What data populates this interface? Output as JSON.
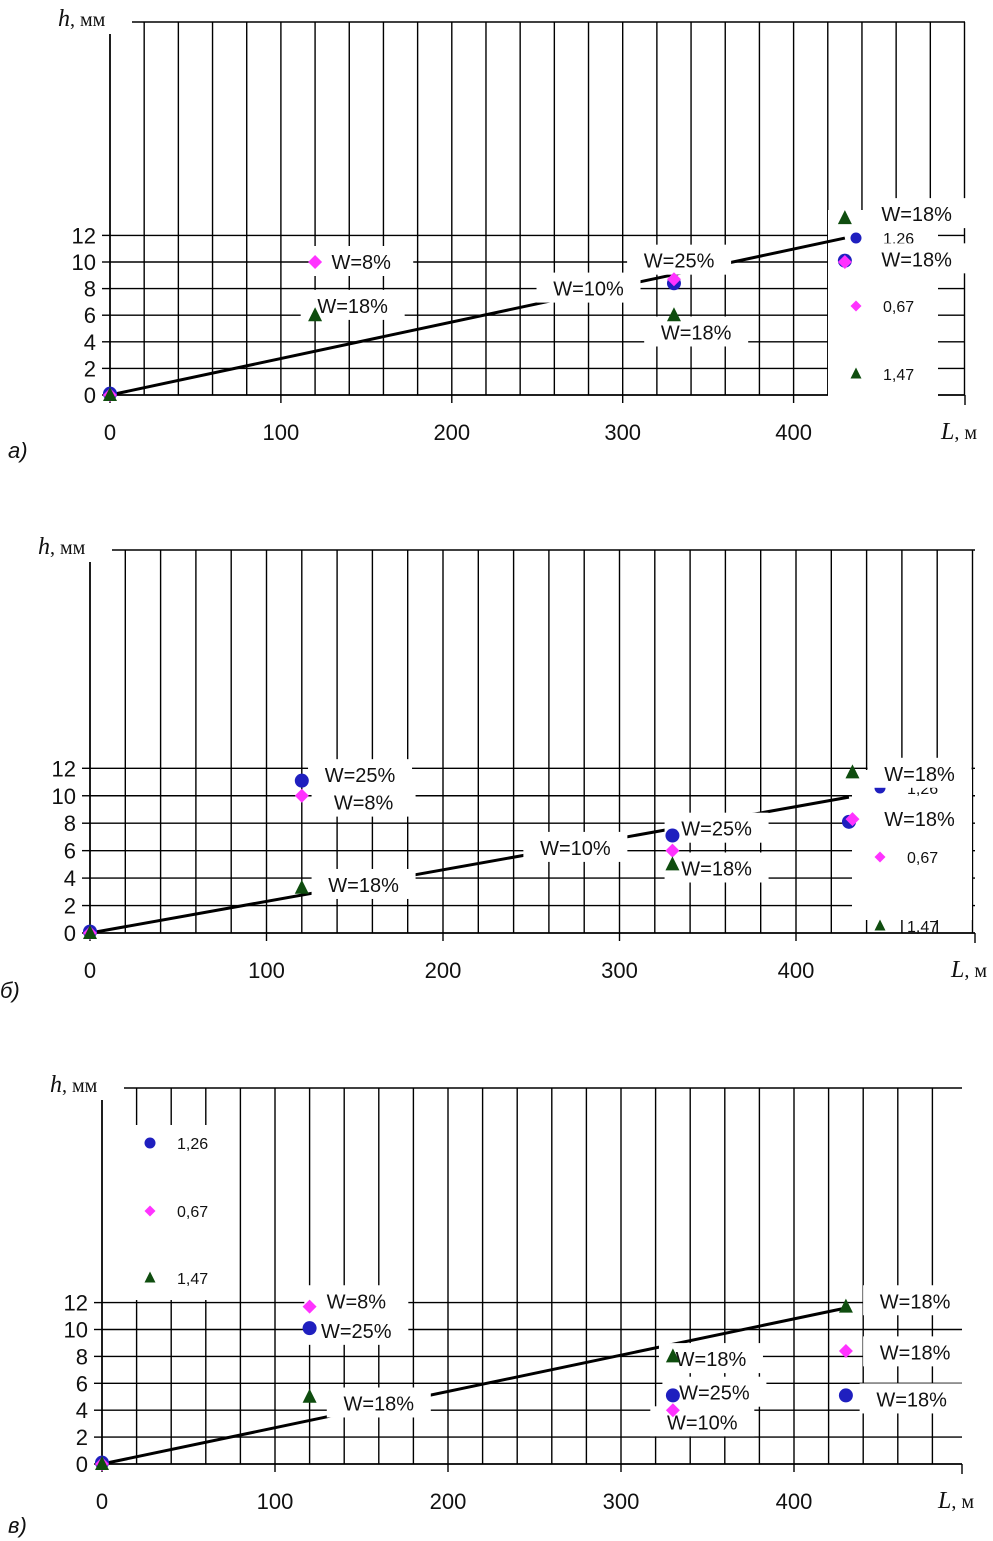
{
  "colors": {
    "s126": "#1f1fbf",
    "s067": "#ff33ff",
    "s147": "#0f4d0f",
    "grid": "#000000",
    "trend": "#000000"
  },
  "chart_data": [
    {
      "type": "scatter",
      "panel_label": "а)",
      "xlabel": "L",
      "xunit": ", м",
      "ylabel": "h",
      "yunit": ", мм",
      "xlim": [
        0,
        500
      ],
      "ylim": [
        0,
        14
      ],
      "xticks": [
        0,
        100,
        200,
        300,
        400
      ],
      "yticks": [
        0,
        2,
        4,
        6,
        8,
        10,
        12
      ],
      "x_grid_step": 20,
      "grid": true,
      "legend_position": "right",
      "series": [
        {
          "name": "1,26",
          "marker": "circle",
          "points": [
            [
              0,
              0.1
            ],
            [
              330,
              8.4
            ],
            [
              430,
              10.1
            ]
          ]
        },
        {
          "name": "0,67",
          "marker": "diamond",
          "points": [
            [
              0,
              0.0
            ],
            [
              120,
              10.0
            ],
            [
              330,
              8.7
            ],
            [
              430,
              10.0
            ]
          ]
        },
        {
          "name": "1,47",
          "marker": "triangle",
          "points": [
            [
              0,
              0.0
            ],
            [
              120,
              6.0
            ],
            [
              330,
              6.0
            ],
            [
              430,
              13.3
            ]
          ]
        }
      ],
      "trendline": [
        [
          0,
          0
        ],
        [
          430,
          11.8
        ]
      ],
      "annotations": [
        {
          "text": "W=8%",
          "x": 147,
          "y": 10.0
        },
        {
          "text": "W=18%",
          "x": 142,
          "y": 6.7
        },
        {
          "text": "W=25%",
          "x": 333,
          "y": 10.1
        },
        {
          "text": "W=10%",
          "x": 280,
          "y": 8.0
        },
        {
          "text": "W=18%",
          "x": 343,
          "y": 4.7
        },
        {
          "text": "W=18%",
          "x": 472,
          "y": 13.6
        },
        {
          "text": "W=18%",
          "x": 472,
          "y": 10.2
        }
      ]
    },
    {
      "type": "scatter",
      "panel_label": "б)",
      "xlabel": "L",
      "xunit": ", м",
      "ylabel": "h",
      "yunit": ", мм",
      "xlim": [
        0,
        500
      ],
      "ylim": [
        0,
        14
      ],
      "xticks": [
        0,
        100,
        200,
        300,
        400
      ],
      "yticks": [
        0,
        2,
        4,
        6,
        8,
        10,
        12
      ],
      "x_grid_step": 20,
      "grid": true,
      "legend_position": "right",
      "series": [
        {
          "name": "1,26",
          "marker": "circle",
          "points": [
            [
              0,
              0.1
            ],
            [
              120,
              11.1
            ],
            [
              330,
              7.1
            ],
            [
              430,
              8.1
            ]
          ]
        },
        {
          "name": "0,67",
          "marker": "diamond",
          "points": [
            [
              0,
              0.0
            ],
            [
              120,
              10.0
            ],
            [
              330,
              6.0
            ],
            [
              432,
              8.3
            ]
          ]
        },
        {
          "name": "1,47",
          "marker": "triangle",
          "points": [
            [
              0,
              0.0
            ],
            [
              120,
              3.3
            ],
            [
              330,
              5.0
            ],
            [
              432,
              11.7
            ]
          ]
        }
      ],
      "trendline": [
        [
          0,
          0
        ],
        [
          430,
          9.9
        ]
      ],
      "annotations": [
        {
          "text": "W=25%",
          "x": 153,
          "y": 11.5
        },
        {
          "text": "W=8%",
          "x": 155,
          "y": 9.5
        },
        {
          "text": "W=18%",
          "x": 155,
          "y": 3.5
        },
        {
          "text": "W=10%",
          "x": 275,
          "y": 6.2
        },
        {
          "text": "W=25%",
          "x": 355,
          "y": 7.6
        },
        {
          "text": "W=18%",
          "x": 355,
          "y": 4.7
        },
        {
          "text": "W=18%",
          "x": 470,
          "y": 11.6
        },
        {
          "text": "W=18%",
          "x": 470,
          "y": 8.3
        }
      ]
    },
    {
      "type": "scatter",
      "panel_label": "в)",
      "xlabel": "L",
      "xunit": ", м",
      "ylabel": "h",
      "yunit": ", мм",
      "xlim": [
        0,
        500
      ],
      "ylim": [
        0,
        14
      ],
      "xticks": [
        0,
        100,
        200,
        300,
        400
      ],
      "yticks": [
        0,
        2,
        4,
        6,
        8,
        10,
        12
      ],
      "x_grid_step": 20,
      "grid": true,
      "legend_position": "top-left",
      "series": [
        {
          "name": "1,26",
          "marker": "circle",
          "points": [
            [
              0,
              0.1
            ],
            [
              120,
              10.1
            ],
            [
              330,
              5.1
            ],
            [
              430,
              5.1
            ]
          ]
        },
        {
          "name": "0,67",
          "marker": "diamond",
          "points": [
            [
              0,
              0.0
            ],
            [
              120,
              11.7
            ],
            [
              330,
              4.0
            ],
            [
              430,
              8.4
            ]
          ]
        },
        {
          "name": "1,47",
          "marker": "triangle",
          "points": [
            [
              0,
              0.0
            ],
            [
              120,
              5.0
            ],
            [
              330,
              8.0
            ],
            [
              430,
              11.7
            ]
          ]
        }
      ],
      "trendline": [
        [
          0,
          0
        ],
        [
          430,
          11.6
        ]
      ],
      "annotations": [
        {
          "text": "W=8%",
          "x": 147,
          "y": 12.1
        },
        {
          "text": "W=25%",
          "x": 147,
          "y": 9.9
        },
        {
          "text": "W=18%",
          "x": 160,
          "y": 4.5
        },
        {
          "text": "W=18%",
          "x": 352,
          "y": 7.8
        },
        {
          "text": "W=25%",
          "x": 354,
          "y": 5.3
        },
        {
          "text": "W=10%",
          "x": 347,
          "y": 3.1
        },
        {
          "text": "W=18%",
          "x": 470,
          "y": 12.1
        },
        {
          "text": "W=18%",
          "x": 470,
          "y": 8.3
        },
        {
          "text": "W=18%",
          "x": 468,
          "y": 4.8
        }
      ]
    }
  ]
}
